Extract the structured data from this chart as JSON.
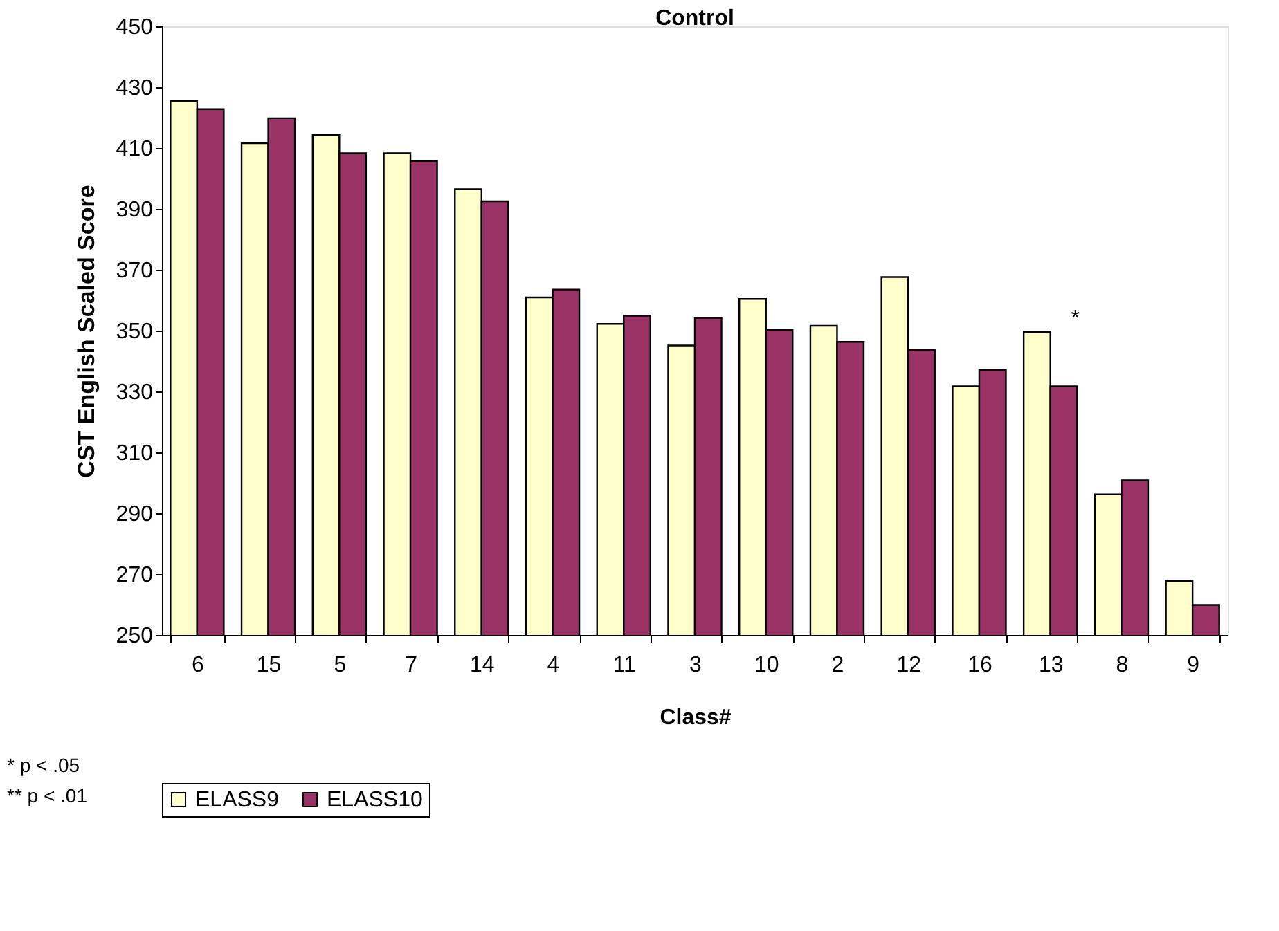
{
  "chart_data": {
    "type": "bar",
    "title": "Control",
    "xlabel": "Class#",
    "ylabel": "CST English Scaled Score",
    "categories": [
      "6",
      "15",
      "5",
      "7",
      "14",
      "4",
      "11",
      "3",
      "10",
      "2",
      "12",
      "16",
      "13",
      "8",
      "9"
    ],
    "series": [
      {
        "name": "ELASS9",
        "color": "#ffffcc",
        "values": [
          425.5,
          411.6,
          414.3,
          408.3,
          396.5,
          360.9,
          352.2,
          345.1,
          360.4,
          351.6,
          367.6,
          331.7,
          349.6,
          296.2,
          267.8
        ]
      },
      {
        "name": "ELASS10",
        "color": "#993366",
        "values": [
          422.8,
          419.8,
          408.3,
          405.7,
          392.5,
          363.5,
          354.9,
          354.2,
          350.3,
          346.3,
          343.7,
          337.1,
          331.7,
          300.8,
          259.9
        ]
      }
    ],
    "ylim": [
      250,
      450
    ],
    "yticks": [
      250,
      270,
      290,
      310,
      330,
      350,
      370,
      390,
      410,
      430,
      450
    ],
    "grid": false,
    "legend": "bottom",
    "annotations": [
      {
        "text": "*",
        "x": "13",
        "y": 349.6
      },
      "* p < .05",
      "** p < .01"
    ]
  }
}
